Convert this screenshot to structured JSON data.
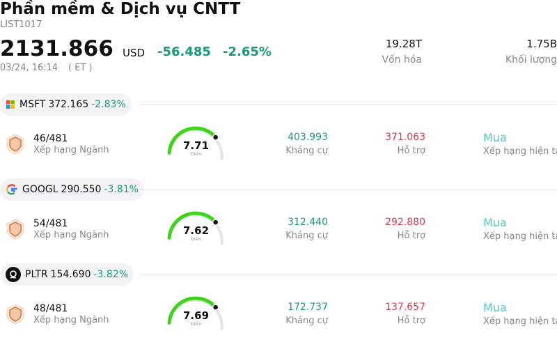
{
  "header": {
    "title": "Phần mềm & Dịch vụ CNTT",
    "code": "LIST1017",
    "price": "2131.866",
    "currency": "USD",
    "change": "-56.485",
    "change_pct": "-2.65%",
    "time": "03/24, 16:14",
    "timezone": "( ET )",
    "stats": [
      {
        "value": "19.28T",
        "label": "Vốn hóa"
      },
      {
        "value": "1.75B",
        "label": "Khối lượng"
      }
    ]
  },
  "stocks": [
    {
      "ticker": "MSFT",
      "price": "372.165",
      "change": "-2.83%",
      "rank": "46/481",
      "rank_label": "Xếp hạng Ngành",
      "score": "7.71",
      "score_label": "Điểm",
      "resistance": "403.993",
      "resistance_label": "Kháng cự",
      "support": "371.063",
      "support_label": "Hỗ trợ",
      "rating": "Mua",
      "rating_label": "Xếp hạng hiện tại"
    },
    {
      "ticker": "GOOGL",
      "price": "290.550",
      "change": "-3.81%",
      "rank": "54/481",
      "rank_label": "Xếp hạng Ngành",
      "score": "7.62",
      "score_label": "Điểm",
      "resistance": "312.440",
      "resistance_label": "Kháng cự",
      "support": "292.880",
      "support_label": "Hỗ trợ",
      "rating": "Mua",
      "rating_label": "Xếp hạng hiện tại"
    },
    {
      "ticker": "PLTR",
      "price": "154.690",
      "change": "-3.82%",
      "rank": "48/481",
      "rank_label": "Xếp hạng Ngành",
      "score": "7.69",
      "score_label": "Điểm",
      "resistance": "172.737",
      "resistance_label": "Kháng cự",
      "support": "137.657",
      "support_label": "Hỗ trợ",
      "rating": "Mua",
      "rating_label": "Xếp hạng hiện tại"
    }
  ]
}
